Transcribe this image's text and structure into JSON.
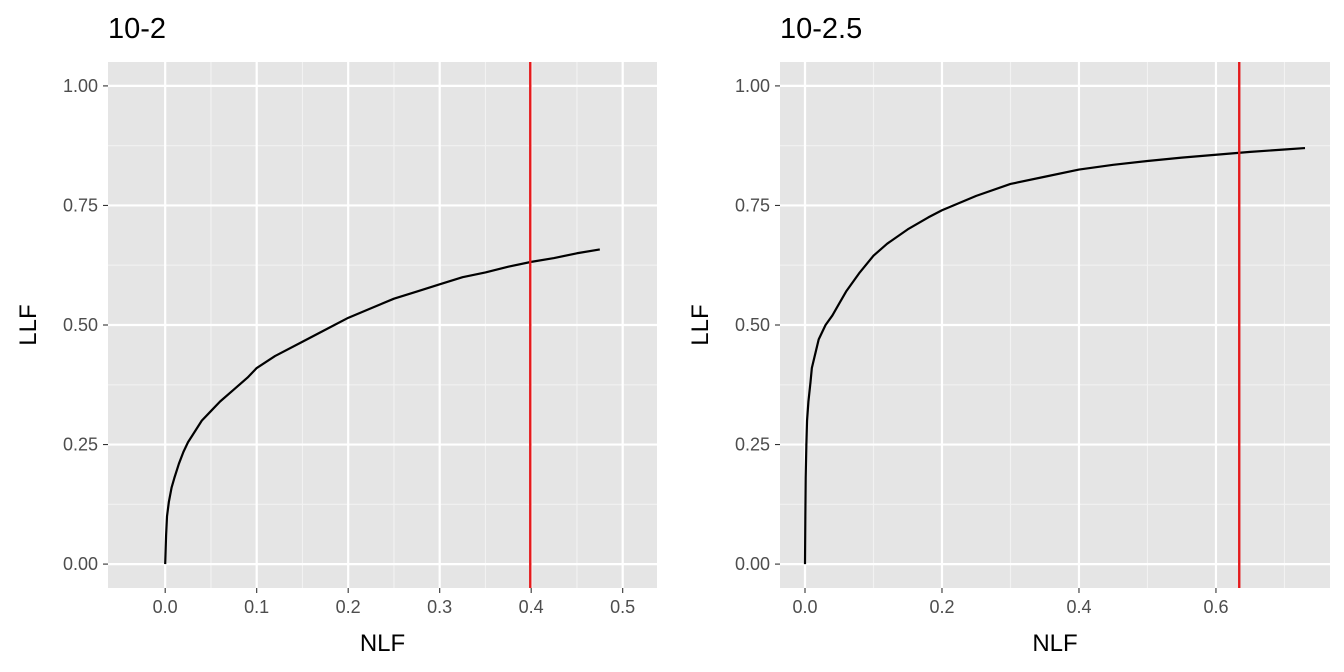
{
  "chart_data": [
    {
      "type": "line",
      "title": "10-2",
      "xlabel": "NLF",
      "ylabel": "LLF",
      "xlim": [
        -0.0625,
        0.5375
      ],
      "ylim": [
        -0.05,
        1.05
      ],
      "x_ticks": [
        "0.0",
        "0.1",
        "0.2",
        "0.3",
        "0.4",
        "0.5"
      ],
      "x_tick_values": [
        0.0,
        0.1,
        0.2,
        0.3,
        0.4,
        0.5
      ],
      "y_ticks": [
        "0.00",
        "0.25",
        "0.50",
        "0.75",
        "1.00"
      ],
      "y_tick_values": [
        0.0,
        0.25,
        0.5,
        0.75,
        1.0
      ],
      "grid": true,
      "vline": {
        "x": 0.399,
        "color": "#e41a1c"
      },
      "series": [
        {
          "color": "#000000",
          "x": [
            0.0,
            0.001,
            0.002,
            0.004,
            0.007,
            0.01,
            0.015,
            0.02,
            0.025,
            0.03,
            0.04,
            0.05,
            0.06,
            0.075,
            0.09,
            0.1,
            0.12,
            0.15,
            0.18,
            0.2,
            0.225,
            0.25,
            0.275,
            0.3,
            0.325,
            0.35,
            0.375,
            0.4,
            0.425,
            0.45,
            0.475
          ],
          "y": [
            0.0,
            0.06,
            0.1,
            0.13,
            0.16,
            0.18,
            0.21,
            0.235,
            0.255,
            0.27,
            0.3,
            0.32,
            0.34,
            0.365,
            0.39,
            0.41,
            0.435,
            0.465,
            0.495,
            0.515,
            0.535,
            0.555,
            0.57,
            0.585,
            0.6,
            0.61,
            0.622,
            0.632,
            0.64,
            0.65,
            0.658
          ]
        }
      ]
    },
    {
      "type": "line",
      "title": "10-2.5",
      "xlabel": "NLF",
      "ylabel": "LLF",
      "xlim": [
        -0.0365,
        0.7665
      ],
      "ylim": [
        -0.05,
        1.05
      ],
      "x_ticks": [
        "0.0",
        "0.2",
        "0.4",
        "0.6"
      ],
      "x_tick_values": [
        0.0,
        0.2,
        0.4,
        0.6
      ],
      "y_ticks": [
        "0.00",
        "0.25",
        "0.50",
        "0.75",
        "1.00"
      ],
      "y_tick_values": [
        0.0,
        0.25,
        0.5,
        0.75,
        1.0
      ],
      "grid": true,
      "vline": {
        "x": 0.634,
        "color": "#e41a1c"
      },
      "series": [
        {
          "color": "#000000",
          "x": [
            0.0,
            0.0005,
            0.001,
            0.002,
            0.003,
            0.005,
            0.008,
            0.01,
            0.015,
            0.02,
            0.03,
            0.04,
            0.05,
            0.06,
            0.08,
            0.1,
            0.12,
            0.15,
            0.18,
            0.2,
            0.25,
            0.3,
            0.35,
            0.4,
            0.45,
            0.5,
            0.55,
            0.6,
            0.65,
            0.7,
            0.73
          ],
          "y": [
            0.0,
            0.1,
            0.18,
            0.25,
            0.3,
            0.34,
            0.38,
            0.41,
            0.44,
            0.47,
            0.5,
            0.52,
            0.545,
            0.57,
            0.61,
            0.645,
            0.67,
            0.7,
            0.725,
            0.74,
            0.77,
            0.795,
            0.81,
            0.825,
            0.835,
            0.843,
            0.85,
            0.856,
            0.862,
            0.867,
            0.87
          ]
        }
      ]
    }
  ]
}
